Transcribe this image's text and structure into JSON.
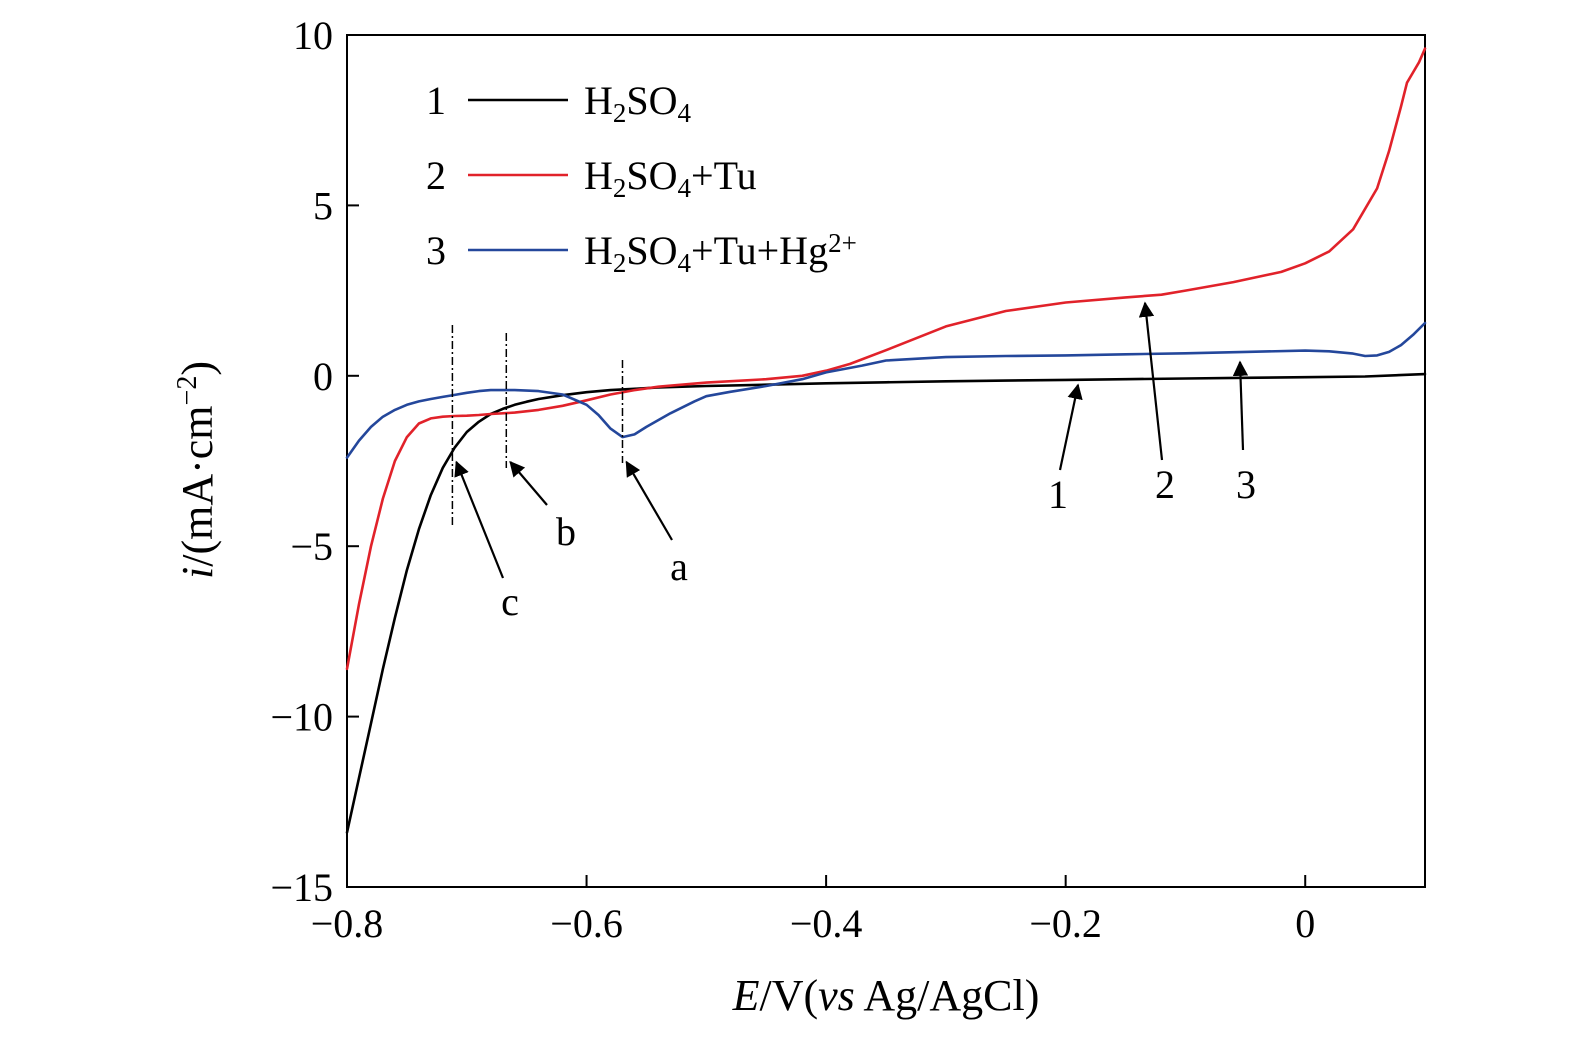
{
  "chart_data": {
    "type": "line",
    "xlabel": {
      "italic": "E",
      "rest": "/V(",
      "italic2": "vs",
      "rest2": " Ag/AgCl)"
    },
    "ylabel": {
      "italic": "i",
      "rest": "/(mA·cm",
      "sup": "−2",
      "close": ")"
    },
    "xlim": [
      -0.8,
      0.1
    ],
    "ylim": [
      -15,
      10
    ],
    "xticks": [
      -0.8,
      -0.6,
      -0.4,
      -0.2,
      0
    ],
    "xtick_labels": [
      "−0.8",
      "−0.6",
      "−0.4",
      "−0.2",
      "0"
    ],
    "yticks": [
      10,
      5,
      0,
      -5,
      -10,
      -15
    ],
    "ytick_labels": [
      "10",
      "5",
      "0",
      "−5",
      "−10",
      "−15"
    ],
    "grid": false,
    "legend_position": "top-left",
    "series": [
      {
        "id": "1",
        "name": "H2SO4",
        "legend": {
          "num": "1",
          "parts": [
            [
              "H",
              ""
            ],
            [
              "2",
              "sub"
            ],
            [
              "SO",
              ""
            ],
            [
              "4",
              "sub"
            ]
          ]
        },
        "color": "#000000",
        "x": [
          -0.8,
          -0.79,
          -0.78,
          -0.77,
          -0.76,
          -0.75,
          -0.74,
          -0.73,
          -0.72,
          -0.71,
          -0.7,
          -0.69,
          -0.68,
          -0.67,
          -0.66,
          -0.65,
          -0.64,
          -0.62,
          -0.6,
          -0.58,
          -0.56,
          -0.54,
          -0.5,
          -0.45,
          -0.4,
          -0.35,
          -0.3,
          -0.25,
          -0.2,
          -0.15,
          -0.1,
          -0.05,
          0.0,
          0.05,
          0.1
        ],
        "y": [
          -13.4,
          -11.8,
          -10.2,
          -8.6,
          -7.1,
          -5.7,
          -4.5,
          -3.5,
          -2.7,
          -2.1,
          -1.65,
          -1.35,
          -1.12,
          -0.97,
          -0.85,
          -0.76,
          -0.68,
          -0.57,
          -0.48,
          -0.42,
          -0.38,
          -0.34,
          -0.3,
          -0.26,
          -0.22,
          -0.19,
          -0.16,
          -0.14,
          -0.12,
          -0.1,
          -0.08,
          -0.06,
          -0.04,
          -0.02,
          0.05
        ]
      },
      {
        "id": "2",
        "name": "H2SO4+Tu",
        "legend": {
          "num": "2",
          "parts": [
            [
              "H",
              ""
            ],
            [
              "2",
              "sub"
            ],
            [
              "SO",
              ""
            ],
            [
              "4",
              "sub"
            ],
            [
              "+Tu",
              ""
            ]
          ]
        },
        "color": "#e1222a",
        "x": [
          -0.8,
          -0.79,
          -0.78,
          -0.77,
          -0.76,
          -0.75,
          -0.74,
          -0.73,
          -0.72,
          -0.71,
          -0.7,
          -0.69,
          -0.68,
          -0.66,
          -0.64,
          -0.62,
          -0.6,
          -0.58,
          -0.56,
          -0.54,
          -0.5,
          -0.45,
          -0.42,
          -0.4,
          -0.38,
          -0.35,
          -0.3,
          -0.25,
          -0.2,
          -0.15,
          -0.12,
          -0.1,
          -0.06,
          -0.02,
          0.0,
          0.02,
          0.04,
          0.06,
          0.07,
          0.08,
          0.085,
          0.09,
          0.095,
          0.1
        ],
        "y": [
          -8.6,
          -6.7,
          -5.0,
          -3.6,
          -2.5,
          -1.8,
          -1.4,
          -1.25,
          -1.2,
          -1.18,
          -1.17,
          -1.15,
          -1.12,
          -1.08,
          -1.0,
          -0.88,
          -0.72,
          -0.55,
          -0.42,
          -0.32,
          -0.2,
          -0.1,
          0.0,
          0.15,
          0.35,
          0.75,
          1.45,
          1.9,
          2.15,
          2.3,
          2.38,
          2.5,
          2.75,
          3.05,
          3.3,
          3.65,
          4.3,
          5.5,
          6.6,
          7.9,
          8.6,
          8.9,
          9.2,
          9.6
        ]
      },
      {
        "id": "3",
        "name": "H2SO4+Tu+Hg2+",
        "legend": {
          "num": "3",
          "parts": [
            [
              "H",
              ""
            ],
            [
              "2",
              "sub"
            ],
            [
              "SO",
              ""
            ],
            [
              "4",
              "sub"
            ],
            [
              "+Tu+Hg",
              ""
            ],
            [
              "2+",
              "sup"
            ]
          ]
        },
        "color": "#24479b",
        "x": [
          -0.8,
          -0.79,
          -0.78,
          -0.77,
          -0.76,
          -0.75,
          -0.74,
          -0.73,
          -0.72,
          -0.71,
          -0.7,
          -0.69,
          -0.68,
          -0.66,
          -0.64,
          -0.62,
          -0.6,
          -0.59,
          -0.58,
          -0.57,
          -0.56,
          -0.55,
          -0.53,
          -0.51,
          -0.5,
          -0.48,
          -0.45,
          -0.42,
          -0.4,
          -0.37,
          -0.35,
          -0.3,
          -0.25,
          -0.2,
          -0.15,
          -0.1,
          -0.05,
          0.0,
          0.02,
          0.04,
          0.05,
          0.06,
          0.07,
          0.08,
          0.09,
          0.1
        ],
        "y": [
          -2.4,
          -1.9,
          -1.5,
          -1.2,
          -1.0,
          -0.85,
          -0.75,
          -0.68,
          -0.62,
          -0.56,
          -0.5,
          -0.45,
          -0.42,
          -0.42,
          -0.45,
          -0.55,
          -0.85,
          -1.15,
          -1.55,
          -1.8,
          -1.72,
          -1.5,
          -1.1,
          -0.75,
          -0.6,
          -0.47,
          -0.3,
          -0.1,
          0.1,
          0.3,
          0.45,
          0.55,
          0.58,
          0.6,
          0.63,
          0.66,
          0.7,
          0.74,
          0.72,
          0.65,
          0.58,
          0.6,
          0.7,
          0.9,
          1.2,
          1.55
        ]
      }
    ],
    "markers": [
      {
        "label": "a",
        "x": -0.57
      },
      {
        "label": "b",
        "x": -0.667
      },
      {
        "label": "c",
        "x": -0.712
      }
    ],
    "curve_labels": [
      {
        "label": "1",
        "x": -0.195
      },
      {
        "label": "2",
        "x": -0.127
      },
      {
        "label": "3",
        "x": -0.055
      }
    ]
  }
}
